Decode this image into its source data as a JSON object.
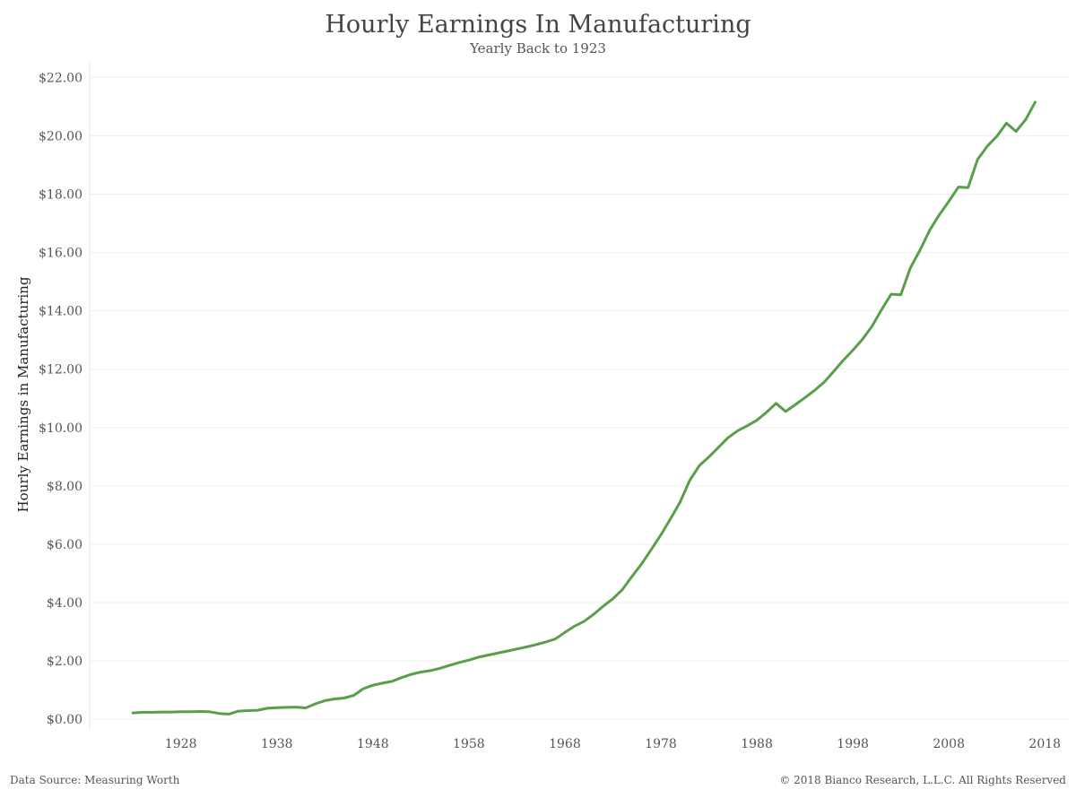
{
  "header": {
    "title": "Hourly Earnings In Manufacturing",
    "subtitle": "Yearly Back to 1923"
  },
  "footer": {
    "source": "Data Source: Measuring Worth",
    "copyright": "© 2018 Bianco Research, L.L.C. All Rights Reserved"
  },
  "chart_data": {
    "type": "line",
    "title": "Hourly Earnings In Manufacturing",
    "subtitle": "Yearly Back to 1923",
    "xlabel": "",
    "ylabel": "Hourly Earnings in Manufacturing",
    "xlim": [
      1918.5,
      2020.5
    ],
    "ylim": [
      -0.3,
      22.5
    ],
    "x_ticks": [
      1928,
      1938,
      1948,
      1958,
      1968,
      1978,
      1988,
      1998,
      2008,
      2018
    ],
    "y_ticks": [
      0,
      2,
      4,
      6,
      8,
      10,
      12,
      14,
      16,
      18,
      20,
      22
    ],
    "y_tick_labels": [
      "$0.00",
      "$2.00",
      "$4.00",
      "$6.00",
      "$8.00",
      "$10.00",
      "$12.00",
      "$14.00",
      "$16.00",
      "$18.00",
      "$20.00",
      "$22.00"
    ],
    "x_tick_labels": [
      "1928",
      "1938",
      "1948",
      "1958",
      "1968",
      "1978",
      "1988",
      "1998",
      "2008",
      "2018"
    ],
    "grid": {
      "horizontal": true,
      "vertical": false
    },
    "line_color": "#5a9e4b",
    "series": [
      {
        "x": [
          1923,
          1924,
          1925,
          1926,
          1927,
          1928,
          1929,
          1930,
          1931,
          1932,
          1933,
          1934,
          1935,
          1936,
          1937,
          1938,
          1939,
          1940,
          1941,
          1942,
          1943,
          1944,
          1945,
          1946,
          1947,
          1948,
          1949,
          1950,
          1951,
          1952,
          1953,
          1954,
          1955,
          1956,
          1957,
          1958,
          1959,
          1960,
          1961,
          1962,
          1963,
          1964,
          1965,
          1966,
          1967,
          1968,
          1969,
          1970,
          1971,
          1972,
          1973,
          1974,
          1975,
          1976,
          1977,
          1978,
          1979,
          1980,
          1981,
          1982,
          1983,
          1984,
          1985,
          1986,
          1987,
          1988,
          1989,
          1990,
          1991,
          1992,
          1993,
          1994,
          1995,
          1996,
          1997,
          1998,
          1999,
          2000,
          2001,
          2002,
          2003,
          2004,
          2005,
          2006,
          2007,
          2008,
          2009,
          2010,
          2011,
          2012,
          2013,
          2014,
          2015,
          2016,
          2017
        ],
        "values": [
          0.22,
          0.24,
          0.24,
          0.25,
          0.25,
          0.26,
          0.26,
          0.27,
          0.26,
          0.2,
          0.18,
          0.28,
          0.3,
          0.31,
          0.38,
          0.4,
          0.41,
          0.42,
          0.39,
          0.53,
          0.64,
          0.7,
          0.73,
          0.82,
          1.05,
          1.17,
          1.24,
          1.3,
          1.43,
          1.54,
          1.62,
          1.67,
          1.75,
          1.85,
          1.95,
          2.03,
          2.13,
          2.2,
          2.27,
          2.34,
          2.41,
          2.48,
          2.56,
          2.65,
          2.75,
          2.98,
          3.19,
          3.36,
          3.6,
          3.88,
          4.13,
          4.45,
          4.9,
          5.33,
          5.82,
          6.32,
          6.87,
          7.44,
          8.18,
          8.69,
          8.99,
          9.32,
          9.65,
          9.89,
          10.06,
          10.25,
          10.52,
          10.83,
          10.55,
          10.78,
          11.02,
          11.27,
          11.55,
          11.92,
          12.3,
          12.65,
          13.02,
          13.47,
          14.04,
          14.57,
          14.55,
          15.48,
          16.08,
          16.76,
          17.29,
          17.75,
          18.24,
          18.22,
          19.19,
          19.64,
          19.98,
          20.43,
          20.15,
          20.55,
          21.15
        ]
      }
    ]
  }
}
